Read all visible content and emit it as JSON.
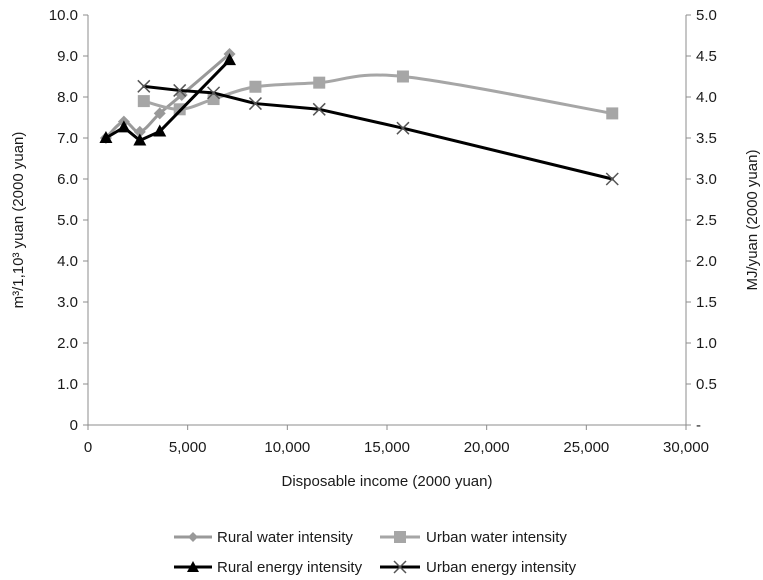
{
  "chart_data": {
    "type": "line",
    "xlabel": "Disposable income (2000 yuan)",
    "ylabel_left": "m³/1,10³ yuan (2000 yuan)",
    "ylabel_right": "MJ/yuan (2000 yuan)",
    "xlim": [
      0,
      30000
    ],
    "ylim_left": [
      0,
      10
    ],
    "ylim_right": [
      0,
      5
    ],
    "x_ticks": [
      "0",
      "5,000",
      "10,000",
      "15,000",
      "20,000",
      "25,000",
      "30,000"
    ],
    "y_left_ticks": [
      "0",
      "1.0",
      "2.0",
      "3.0",
      "4.0",
      "5.0",
      "6.0",
      "7.0",
      "8.0",
      "9.0",
      "10.0"
    ],
    "y_right_ticks": [
      "-",
      "0.5",
      "1.0",
      "1.5",
      "2.0",
      "2.5",
      "3.0",
      "3.5",
      "4.0",
      "4.5",
      "5.0"
    ],
    "grid": false,
    "legend_position": "bottom",
    "series": [
      {
        "name": "Rural water intensity",
        "axis": "left",
        "color": "#999999",
        "marker": "diamond",
        "smooth": true,
        "points": [
          [
            900,
            7.0
          ],
          [
            1800,
            7.4
          ],
          [
            2600,
            7.15
          ],
          [
            3600,
            7.6
          ],
          [
            4700,
            8.05
          ],
          [
            7100,
            9.05
          ]
        ]
      },
      {
        "name": "Urban water intensity",
        "axis": "left",
        "color": "#a6a6a6",
        "marker": "square",
        "smooth": true,
        "points": [
          [
            2800,
            7.9
          ],
          [
            4600,
            7.7
          ],
          [
            6300,
            7.95
          ],
          [
            8400,
            8.25
          ],
          [
            11600,
            8.35
          ],
          [
            15800,
            8.5
          ],
          [
            26300,
            7.6
          ]
        ]
      },
      {
        "name": "Rural energy intensity",
        "axis": "right",
        "color": "#000000",
        "marker": "triangle",
        "smooth": false,
        "points": [
          [
            900,
            3.5
          ],
          [
            1800,
            3.63
          ],
          [
            2600,
            3.47
          ],
          [
            3600,
            3.58
          ],
          [
            7100,
            4.45
          ]
        ]
      },
      {
        "name": "Urban energy intensity",
        "axis": "right",
        "color": "#000000",
        "marker": "x",
        "smooth": false,
        "points": [
          [
            2800,
            4.13
          ],
          [
            4600,
            4.08
          ],
          [
            6300,
            4.05
          ],
          [
            8400,
            3.92
          ],
          [
            11600,
            3.85
          ],
          [
            15800,
            3.62
          ],
          [
            26300,
            3.0
          ]
        ]
      }
    ]
  }
}
